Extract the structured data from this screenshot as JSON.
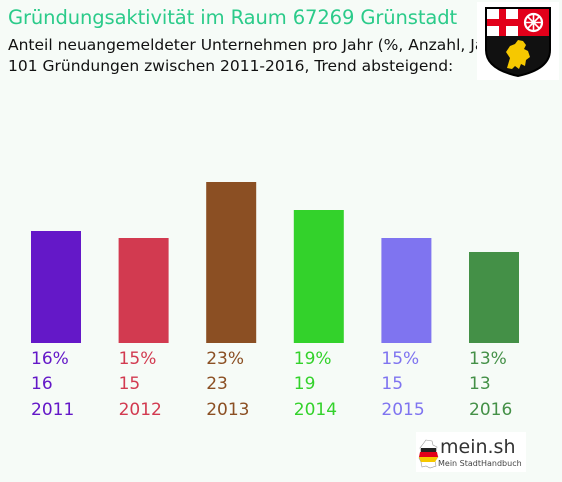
{
  "header": {
    "title": "Gründungsaktivität im Raum 67269 Grünstadt",
    "subtitle_line1": "Anteil neuangemeldeter Unternehmen pro Jahr (%, Anzahl, Jahr)",
    "subtitle_line2": "101 Gründungen zwischen 2011-2016, Trend absteigend:"
  },
  "crest": {
    "icon": "rhineland-palatinate-coat-of-arms"
  },
  "logo": {
    "name": "mein.sh",
    "tagline": "Mein StadtHandbuch",
    "icon": "germany-map-icon"
  },
  "chart_data": {
    "type": "bar",
    "title": "Gründungsaktivität im Raum 67269 Grünstadt",
    "categories": [
      "2011",
      "2012",
      "2013",
      "2014",
      "2015",
      "2016"
    ],
    "values": [
      16,
      15,
      23,
      19,
      15,
      13
    ],
    "percent_labels": [
      "16%",
      "15%",
      "23%",
      "19%",
      "15%",
      "13%"
    ],
    "count_labels": [
      "16",
      "15",
      "23",
      "19",
      "15",
      "13"
    ],
    "colors": [
      "#6418c8",
      "#d23a50",
      "#8b4f23",
      "#33d22b",
      "#7f74f0",
      "#449047"
    ],
    "total": 101,
    "trend": "absteigend"
  }
}
